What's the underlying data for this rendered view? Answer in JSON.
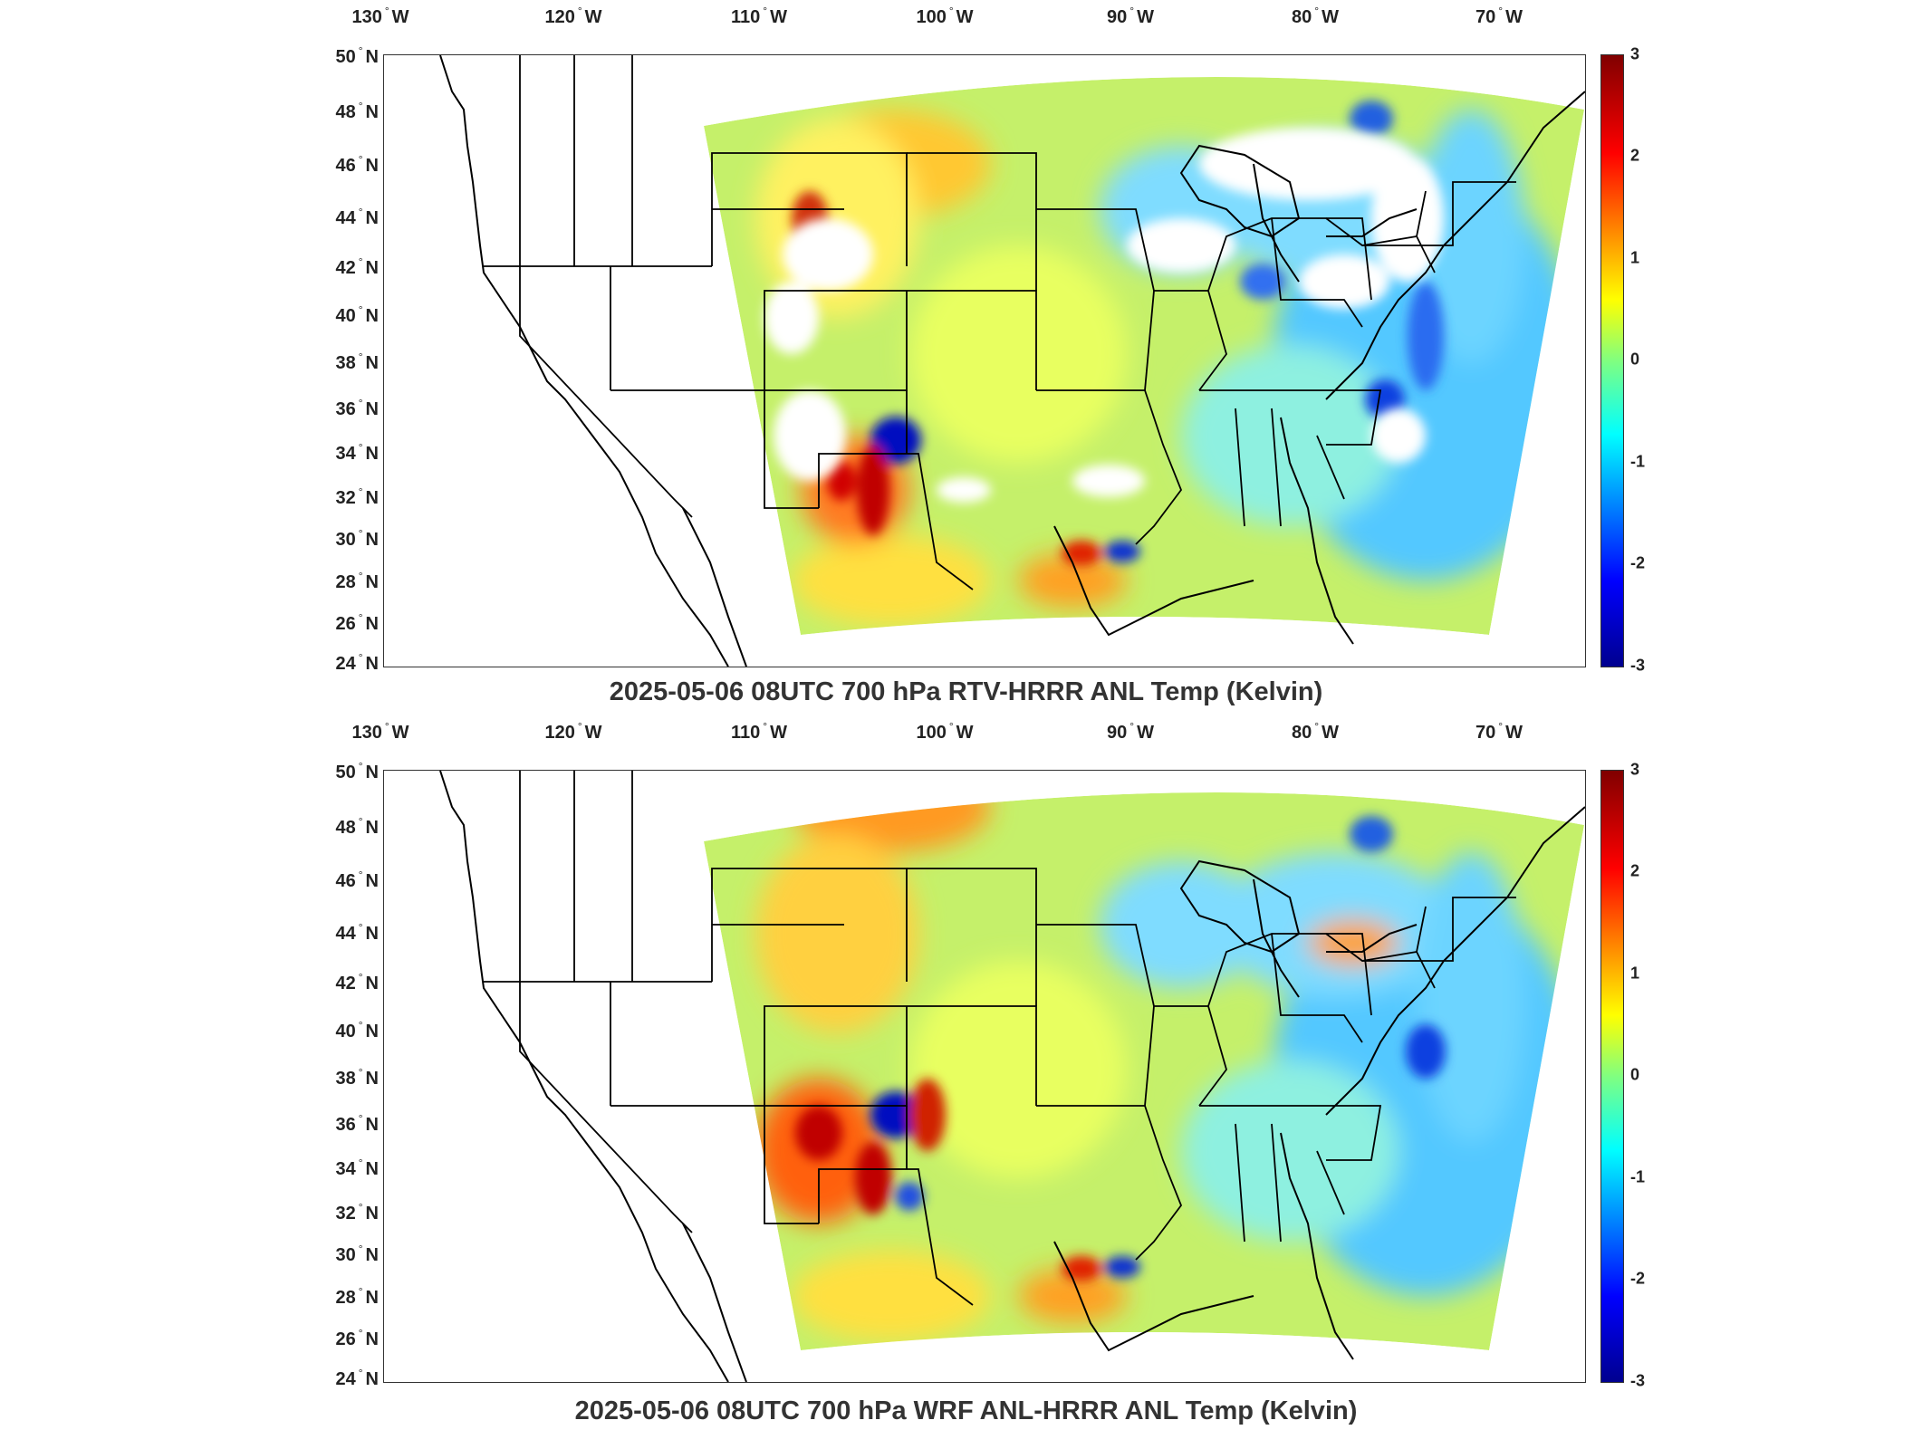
{
  "panels": [
    {
      "title": "2025-05-06 08UTC 700 hPa RTV-HRRR ANL Temp (Kelvin)",
      "lon_labels": [
        "130",
        "120",
        "110",
        "100",
        "90",
        "80",
        "70"
      ],
      "lon_suffix": "W",
      "lat_labels": [
        "50",
        "48",
        "46",
        "44",
        "42",
        "40",
        "38",
        "36",
        "34",
        "32",
        "30",
        "28",
        "26",
        "24"
      ],
      "lat_suffix": "N",
      "colorbar_ticks": [
        "3",
        "2",
        "1",
        "0",
        "-1",
        "-2",
        "-3"
      ]
    },
    {
      "title": "2025-05-06 08UTC 700 hPa WRF ANL-HRRR ANL Temp (Kelvin)",
      "lon_labels": [
        "130",
        "120",
        "110",
        "100",
        "90",
        "80",
        "70"
      ],
      "lon_suffix": "W",
      "lat_labels": [
        "50",
        "48",
        "46",
        "44",
        "42",
        "40",
        "38",
        "36",
        "34",
        "32",
        "30",
        "28",
        "26",
        "24"
      ],
      "lat_suffix": "N",
      "colorbar_ticks": [
        "3",
        "2",
        "1",
        "0",
        "-1",
        "-2",
        "-3"
      ]
    }
  ],
  "colormap": [
    "#00008f",
    "#0000ff",
    "#0080ff",
    "#00ffff",
    "#80ff80",
    "#ffff00",
    "#ff8000",
    "#ff0000",
    "#800000"
  ]
}
